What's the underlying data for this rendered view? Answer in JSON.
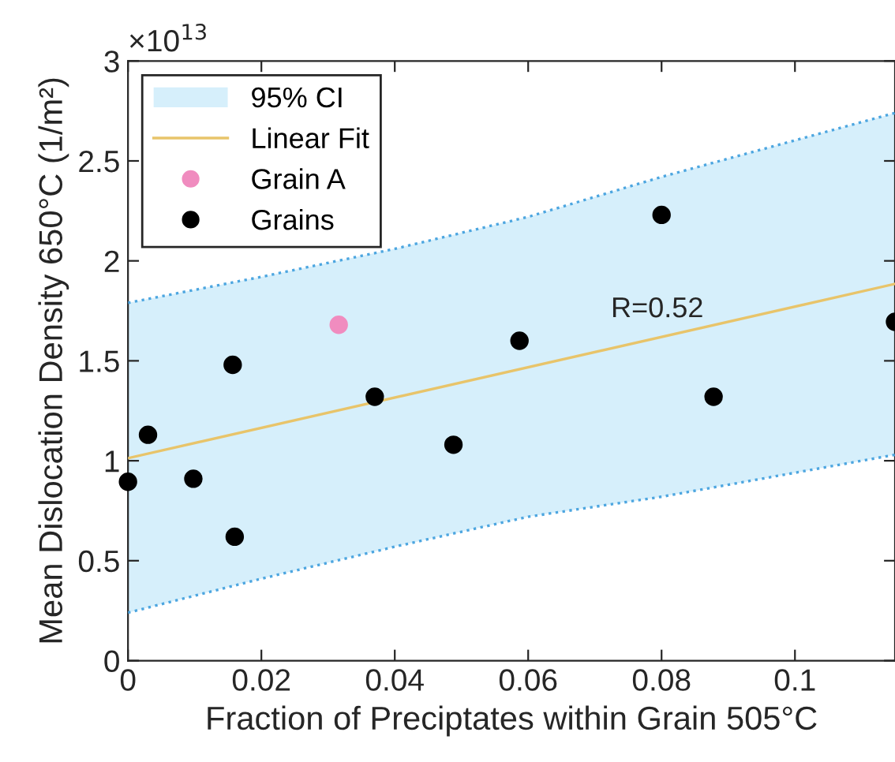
{
  "chart_data": {
    "type": "scatter",
    "xlabel": "Fraction of Preciptates within Grain 505°C",
    "ylabel": "Mean Dislocation Density 650°C (1/m²)",
    "annotations": [
      "×10$^{13}$",
      "R=0.52"
    ],
    "xlim": [
      0,
      0.115
    ],
    "ylim": [
      0,
      3
    ],
    "xticks": [
      0,
      0.02,
      0.04,
      0.06,
      0.08,
      0.1
    ],
    "yticks": [
      0,
      0.5,
      1,
      1.5,
      2,
      2.5,
      3
    ],
    "legend": "top left",
    "grid": false,
    "series": [
      {
        "name": "95% CI",
        "type": "line",
        "color": "#d6effb",
        "x": [
          0,
          0.02,
          0.04,
          0.06,
          0.08,
          0.115
        ],
        "values": [
          null,
          null,
          null,
          null,
          null,
          null
        ],
        "lower": [
          0.24,
          0.41,
          0.57,
          0.72,
          0.82,
          1.03
        ],
        "upper": [
          1.79,
          1.92,
          2.06,
          2.22,
          2.42,
          2.74
        ]
      },
      {
        "type": "line",
        "color": "#4da6e0",
        "line_style": "dotted",
        "marker": "none",
        "x": [
          0,
          0.02,
          0.04,
          0.06,
          0.08,
          0.115
        ],
        "values": [
          0.24,
          0.41,
          0.57,
          0.72,
          0.82,
          1.03
        ]
      },
      {
        "type": "line",
        "color": "#4da6e0",
        "line_style": "dotted",
        "marker": "none",
        "x": [
          0,
          0.02,
          0.04,
          0.06,
          0.08,
          0.115
        ],
        "values": [
          1.79,
          1.92,
          2.06,
          2.22,
          2.42,
          2.74
        ]
      },
      {
        "name": "Linear Fit",
        "type": "line",
        "color": "#e8c46a",
        "marker": "none",
        "x": [
          0,
          0.115
        ],
        "values": [
          1.013,
          1.885
        ]
      },
      {
        "name": "Grain A",
        "color": "#f08cbf",
        "marker": "circle",
        "x": [
          0.0316
        ],
        "values": [
          1.68
        ]
      },
      {
        "name": "Grains",
        "color": "#000000",
        "marker": "circle",
        "x": [
          0,
          0.003,
          0.0098,
          0.016,
          0.0157,
          0.037,
          0.0488,
          0.0587,
          0.08,
          0.0878,
          0.115
        ],
        "values": [
          0.895,
          1.13,
          0.91,
          0.62,
          1.48,
          1.32,
          1.08,
          1.6,
          2.23,
          1.32,
          1.695
        ]
      }
    ]
  }
}
